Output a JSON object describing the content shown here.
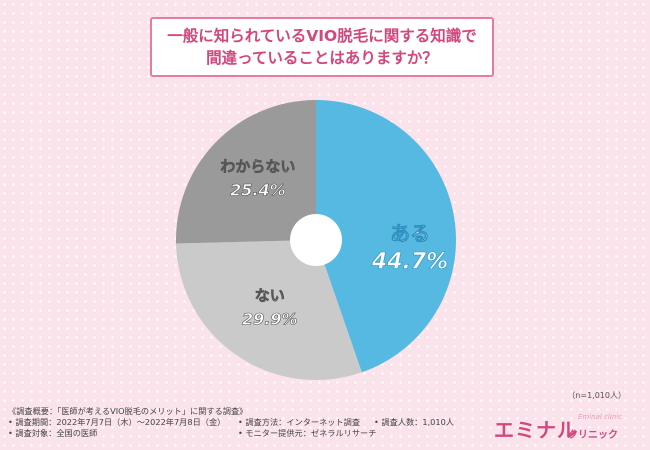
{
  "header": {
    "title_line1": "一般に知られているVIO脱毛に関する知識で",
    "title_line2": "間違っていることはありますか？"
  },
  "chart_data": {
    "type": "pie",
    "donut": true,
    "start_angle_deg": 0,
    "direction": "clockwise",
    "slices": [
      {
        "label": "ある",
        "value": 44.7,
        "value_label": "44.7%",
        "color": "#55b9e2"
      },
      {
        "label": "ない",
        "value": 29.9,
        "value_label": "29.9%",
        "color": "#cacaca"
      },
      {
        "label": "わからない",
        "value": 25.4,
        "value_label": "25.4%",
        "color": "#9a9a9a"
      }
    ]
  },
  "sample_note": "（n=1,010人）",
  "footer": {
    "overview": "《調査概要：「医師が考えるVIO脱毛のメリット」に関する調査》",
    "period": "• 調査期間：2022年7月7日（木）〜2022年7月8日（金）",
    "method": "• 調査方法：インターネット調査",
    "count": "• 調査人数：1,010人",
    "target": "• 調査対象：全国の医師",
    "provider": "• モニター提供元：ゼネラルリサーチ"
  },
  "logo": {
    "main": "エミナル",
    "sub": "クリニック",
    "en": "Eminal clinic"
  }
}
